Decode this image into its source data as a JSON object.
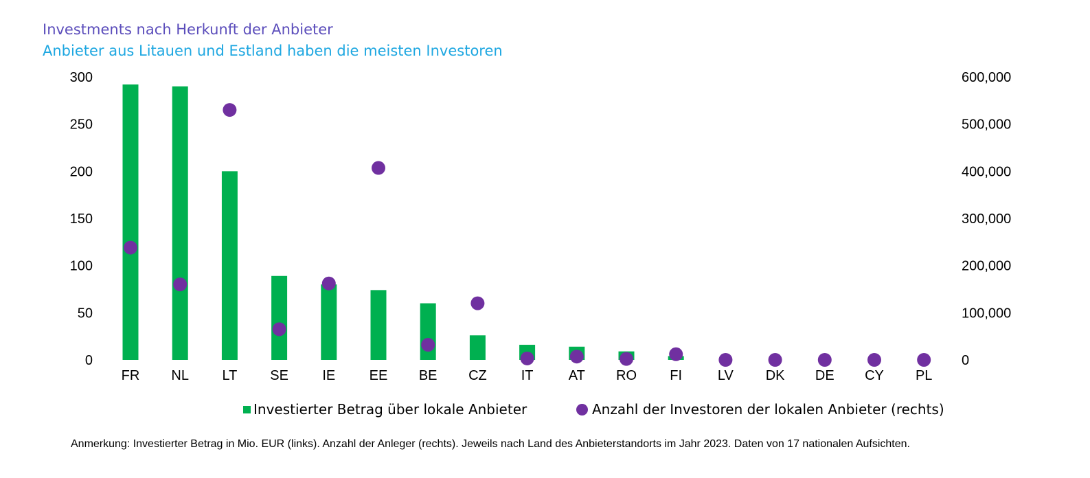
{
  "chart_data": {
    "type": "bar",
    "title": "Investments nach Herkunft der Anbieter",
    "subtitle": "Anbieter aus Litauen und Estland haben die meisten Investoren",
    "categories": [
      "FR",
      "NL",
      "LT",
      "SE",
      "IE",
      "EE",
      "BE",
      "CZ",
      "IT",
      "AT",
      "RO",
      "FI",
      "LV",
      "DK",
      "DE",
      "CY",
      "PL"
    ],
    "series": [
      {
        "name": "Investierter Betrag über lokale Anbieter",
        "type": "bar",
        "axis": "left",
        "color": "#00b050",
        "values": [
          292,
          290,
          200,
          89,
          80,
          74,
          60,
          26,
          16,
          14,
          9,
          4,
          0,
          0,
          0,
          0,
          0
        ]
      },
      {
        "name": "Anzahl der Investoren der lokalen Anbieter (rechts)",
        "type": "scatter",
        "axis": "right",
        "color": "#7030a0",
        "values": [
          238000,
          160000,
          530000,
          65000,
          162000,
          407000,
          32000,
          120000,
          3000,
          7000,
          2000,
          12000,
          0,
          0,
          0,
          0,
          0
        ]
      }
    ],
    "ylim": [
      0,
      300
    ],
    "yticks": [
      "0",
      "50",
      "100",
      "150",
      "200",
      "250",
      "300"
    ],
    "y2lim": [
      0,
      600000
    ],
    "y2ticks": [
      "0",
      "100,000",
      "200,000",
      "300,000",
      "400,000",
      "500,000",
      "600,000"
    ],
    "legend_position": "bottom",
    "grid": false
  },
  "note": "Anmerkung: Investierter Betrag in Mio. EUR (links). Anzahl der Anleger (rechts). Jeweils nach Land des Anbieterstandorts im Jahr 2023. Daten von 17 nationalen Aufsichten."
}
